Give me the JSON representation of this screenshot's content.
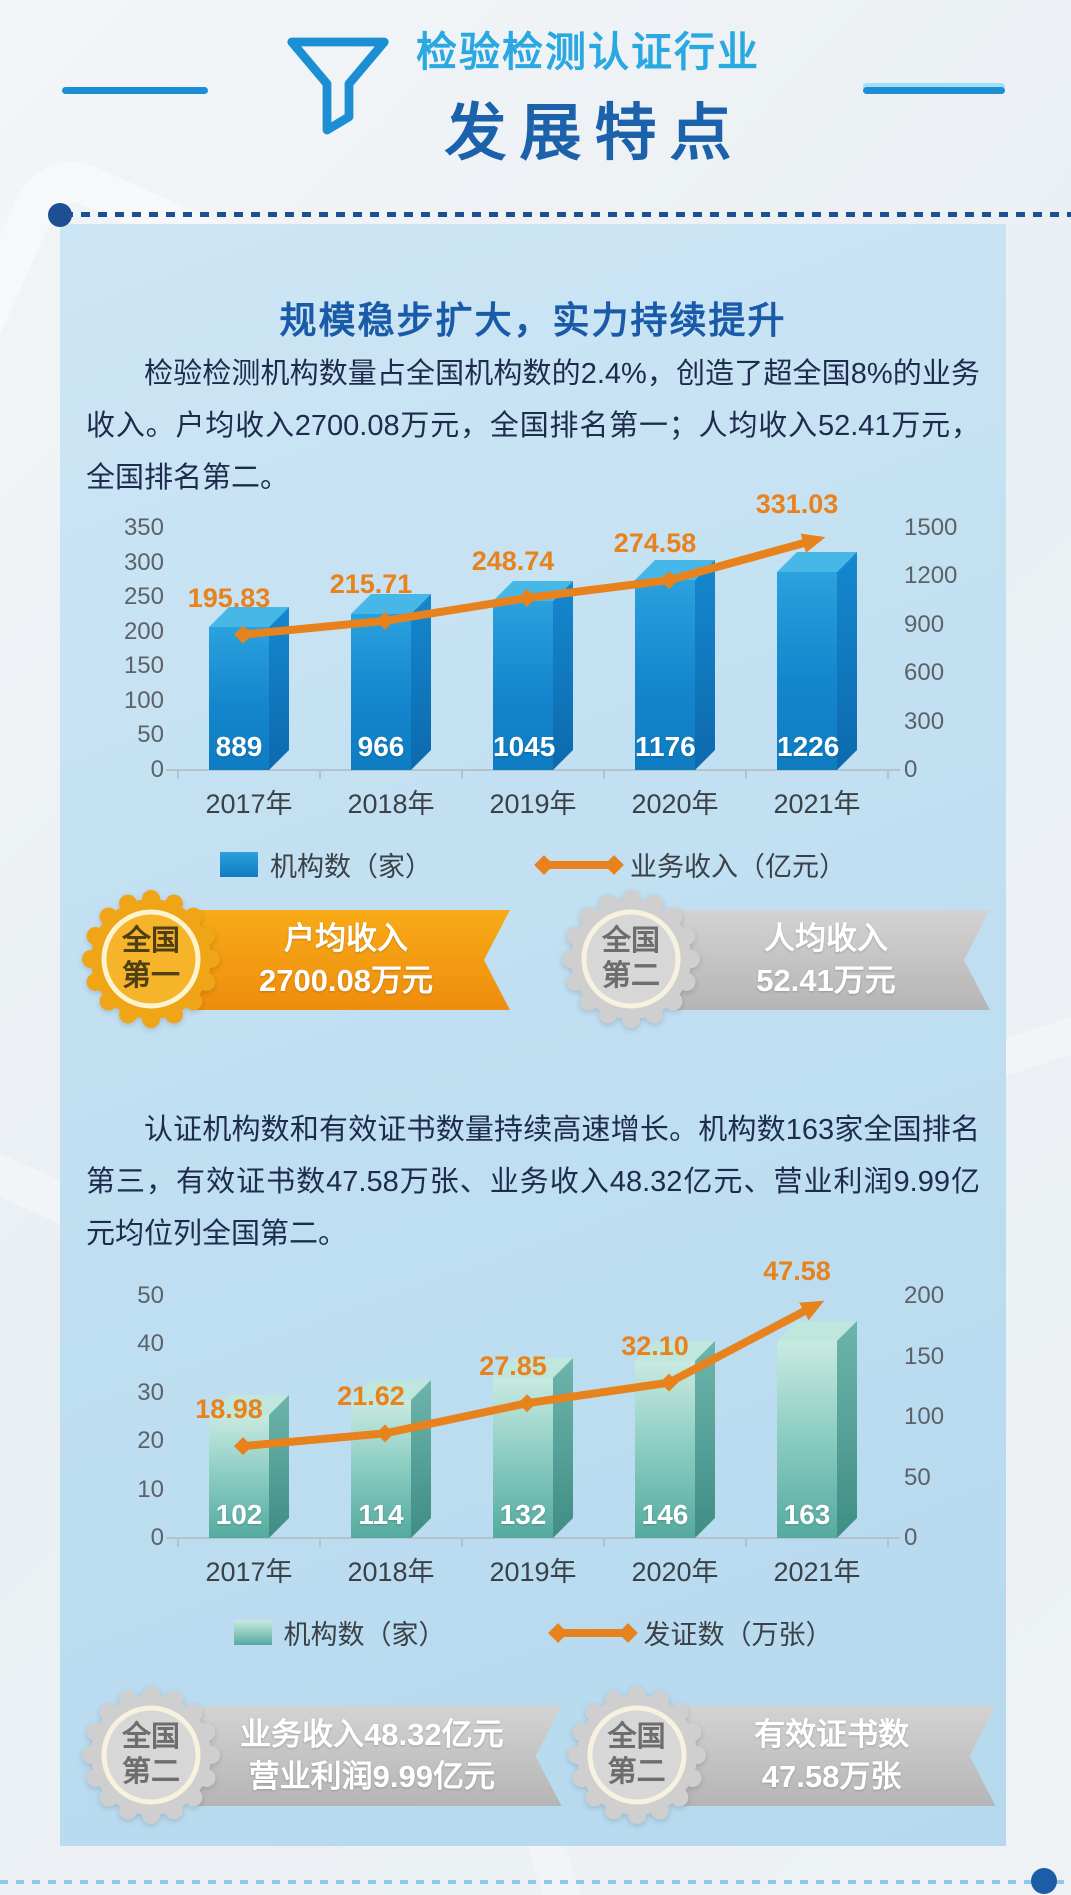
{
  "header": {
    "title_small": "检验检测认证行业",
    "title_large": "发展特点"
  },
  "section1": {
    "title": "规模稳步扩大，实力持续提升",
    "paragraph": "检验检测机构数量占全国机构数的2.4%，创造了超全国8%的业务收入。户均收入2700.08万元，全国排名第一；人均收入52.41万元，全国排名第二。",
    "badges": [
      {
        "style": "gold",
        "medal_line1": "全国",
        "medal_line2": "第一",
        "ribbon_line1": "户均收入",
        "ribbon_line2": "2700.08万元"
      },
      {
        "style": "silver",
        "medal_line1": "全国",
        "medal_line2": "第二",
        "ribbon_line1": "人均收入",
        "ribbon_line2": "52.41万元"
      }
    ]
  },
  "section2": {
    "paragraph": "认证机构数和有效证书数量持续高速增长。机构数163家全国排名第三，有效证书数47.58万张、业务收入48.32亿元、营业利润9.99亿元均位列全国第二。",
    "badges": [
      {
        "style": "silver",
        "medal_line1": "全国",
        "medal_line2": "第二",
        "ribbon_line1": "业务收入48.32亿元",
        "ribbon_line2": "营业利润9.99亿元"
      },
      {
        "style": "silver",
        "medal_line1": "全国",
        "medal_line2": "第二",
        "ribbon_line1": "有效证书数",
        "ribbon_line2": "47.58万张"
      }
    ]
  },
  "chart_data": [
    {
      "type": "bar+line",
      "categories": [
        "2017年",
        "2018年",
        "2019年",
        "2020年",
        "2021年"
      ],
      "series": [
        {
          "name": "机构数（家）",
          "type": "bar",
          "axis": "right",
          "values": [
            889,
            966,
            1045,
            1176,
            1226
          ]
        },
        {
          "name": "业务收入（亿元）",
          "type": "line",
          "axis": "left",
          "values": [
            195.83,
            215.71,
            248.74,
            274.58,
            331.03
          ]
        }
      ],
      "left_axis": {
        "min": 0,
        "max": 350,
        "ticks": [
          0,
          50,
          100,
          150,
          200,
          250,
          300,
          350
        ]
      },
      "right_axis": {
        "min": 0,
        "max": 1500,
        "ticks": [
          0,
          300,
          600,
          900,
          1200,
          1500
        ]
      },
      "legend_position": "bottom",
      "grid": false
    },
    {
      "type": "bar+line",
      "categories": [
        "2017年",
        "2018年",
        "2019年",
        "2020年",
        "2021年"
      ],
      "series": [
        {
          "name": "机构数（家）",
          "type": "bar",
          "axis": "right",
          "values": [
            102,
            114,
            132,
            146,
            163
          ]
        },
        {
          "name": "发证数（万张）",
          "type": "line",
          "axis": "left",
          "values": [
            18.98,
            21.62,
            27.85,
            32.1,
            47.58
          ]
        }
      ],
      "left_axis": {
        "min": 0,
        "max": 50,
        "ticks": [
          0,
          10,
          20,
          30,
          40,
          50
        ]
      },
      "right_axis": {
        "min": 0,
        "max": 200,
        "ticks": [
          0,
          50,
          100,
          150,
          200
        ]
      },
      "legend_position": "bottom",
      "grid": false
    }
  ],
  "colors": {
    "header_light_blue": "#29a8e1",
    "header_dark_blue": "#1b62ab",
    "panel_blue": "#c2e0f2",
    "accent_orange": "#e8821c",
    "bar_blue": "#1486cd",
    "bar_teal": "#78c0b5",
    "gold": "#f0a517",
    "silver": "#cfcfcf"
  }
}
